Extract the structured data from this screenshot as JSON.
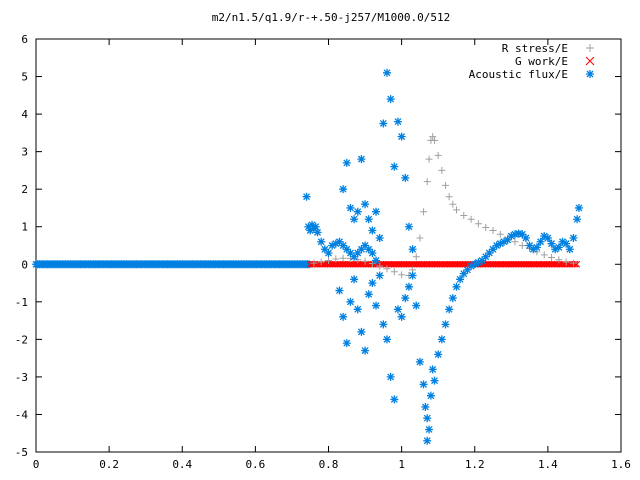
{
  "chart_data": {
    "type": "scatter",
    "title": "m2/n1.5/q1.9/r-+.50-j257/M1000.0/512",
    "xlabel": "",
    "ylabel": "",
    "xlim": [
      0,
      1.6
    ],
    "ylim": [
      -5,
      6
    ],
    "x_ticks": [
      "0",
      "0.2",
      "0.4",
      "0.6",
      "0.8",
      "1",
      "1.2",
      "1.4",
      "1.6"
    ],
    "y_ticks": [
      "6",
      "5",
      "4",
      "3",
      "2",
      "1",
      "0",
      "-1",
      "-2",
      "-3",
      "-4",
      "-5"
    ],
    "grid": false,
    "legend_position": "top-right",
    "series": [
      {
        "name": "R stress/E",
        "marker": "plus",
        "color": "#a0a0a0",
        "points": [
          [
            0.76,
            0.03
          ],
          [
            0.78,
            0.06
          ],
          [
            0.8,
            0.1
          ],
          [
            0.82,
            0.14
          ],
          [
            0.84,
            0.16
          ],
          [
            0.86,
            0.15
          ],
          [
            0.88,
            0.12
          ],
          [
            0.9,
            0.08
          ],
          [
            0.92,
            0.02
          ],
          [
            0.94,
            -0.05
          ],
          [
            0.96,
            -0.12
          ],
          [
            0.98,
            -0.2
          ],
          [
            1.0,
            -0.28
          ],
          [
            1.02,
            -0.3
          ],
          [
            1.03,
            -0.15
          ],
          [
            1.04,
            0.2
          ],
          [
            1.05,
            0.7
          ],
          [
            1.06,
            1.4
          ],
          [
            1.07,
            2.2
          ],
          [
            1.075,
            2.8
          ],
          [
            1.08,
            3.3
          ],
          [
            1.085,
            3.4
          ],
          [
            1.09,
            3.3
          ],
          [
            1.1,
            2.9
          ],
          [
            1.11,
            2.5
          ],
          [
            1.12,
            2.1
          ],
          [
            1.13,
            1.8
          ],
          [
            1.14,
            1.6
          ],
          [
            1.15,
            1.45
          ],
          [
            1.17,
            1.3
          ],
          [
            1.19,
            1.2
          ],
          [
            1.21,
            1.08
          ],
          [
            1.23,
            0.98
          ],
          [
            1.25,
            0.9
          ],
          [
            1.27,
            0.8
          ],
          [
            1.29,
            0.7
          ],
          [
            1.31,
            0.6
          ],
          [
            1.33,
            0.5
          ],
          [
            1.35,
            0.42
          ],
          [
            1.37,
            0.33
          ],
          [
            1.39,
            0.25
          ],
          [
            1.41,
            0.18
          ],
          [
            1.43,
            0.12
          ],
          [
            1.45,
            0.06
          ],
          [
            1.47,
            0.03
          ]
        ]
      },
      {
        "name": "G work/E",
        "marker": "cross",
        "color": "#ff0000",
        "range": [
          0.75,
          1.48
        ],
        "value": 0
      },
      {
        "name": "Acoustic flux/E",
        "marker": "star",
        "color": "#0080e0",
        "flat_range": [
          0,
          0.75
        ],
        "points": [
          [
            0.74,
            1.8
          ],
          [
            0.745,
            1.0
          ],
          [
            0.75,
            0.9
          ],
          [
            0.755,
            1.05
          ],
          [
            0.76,
            0.95
          ],
          [
            0.765,
            1.0
          ],
          [
            0.77,
            0.85
          ],
          [
            0.78,
            0.6
          ],
          [
            0.79,
            0.4
          ],
          [
            0.8,
            0.3
          ],
          [
            0.81,
            0.5
          ],
          [
            0.82,
            0.55
          ],
          [
            0.83,
            0.6
          ],
          [
            0.84,
            0.5
          ],
          [
            0.85,
            0.4
          ],
          [
            0.86,
            0.3
          ],
          [
            0.87,
            0.2
          ],
          [
            0.88,
            0.3
          ],
          [
            0.89,
            0.4
          ],
          [
            0.9,
            0.5
          ],
          [
            0.91,
            0.4
          ],
          [
            0.92,
            0.3
          ],
          [
            0.93,
            0.1
          ],
          [
            0.83,
            -0.7
          ],
          [
            0.84,
            -1.4
          ],
          [
            0.85,
            -2.1
          ],
          [
            0.86,
            -1.0
          ],
          [
            0.87,
            -0.4
          ],
          [
            0.88,
            -1.2
          ],
          [
            0.89,
            -1.8
          ],
          [
            0.9,
            -2.3
          ],
          [
            0.91,
            -0.8
          ],
          [
            0.92,
            -0.5
          ],
          [
            0.93,
            -1.1
          ],
          [
            0.94,
            -0.3
          ],
          [
            0.95,
            -1.6
          ],
          [
            0.96,
            -2.0
          ],
          [
            0.97,
            -3.0
          ],
          [
            0.98,
            -3.6
          ],
          [
            0.99,
            -1.2
          ],
          [
            1.0,
            -1.4
          ],
          [
            1.01,
            -0.9
          ],
          [
            1.02,
            -0.6
          ],
          [
            1.03,
            -0.3
          ],
          [
            1.04,
            -1.1
          ],
          [
            1.05,
            -2.6
          ],
          [
            1.06,
            -3.2
          ],
          [
            1.065,
            -3.8
          ],
          [
            1.07,
            -4.1
          ],
          [
            1.07,
            -4.7
          ],
          [
            1.075,
            -4.4
          ],
          [
            1.08,
            -3.5
          ],
          [
            1.085,
            -2.8
          ],
          [
            0.84,
            2.0
          ],
          [
            0.85,
            2.7
          ],
          [
            0.86,
            1.5
          ],
          [
            0.87,
            1.2
          ],
          [
            0.88,
            1.4
          ],
          [
            0.89,
            2.8
          ],
          [
            0.9,
            1.6
          ],
          [
            0.91,
            1.2
          ],
          [
            0.92,
            0.9
          ],
          [
            0.93,
            1.4
          ],
          [
            0.94,
            0.7
          ],
          [
            0.95,
            3.75
          ],
          [
            0.96,
            5.1
          ],
          [
            0.97,
            4.4
          ],
          [
            0.98,
            2.6
          ],
          [
            0.99,
            3.8
          ],
          [
            1.0,
            3.4
          ],
          [
            1.01,
            2.3
          ],
          [
            1.02,
            1.0
          ],
          [
            1.03,
            0.4
          ],
          [
            1.09,
            -3.1
          ],
          [
            1.1,
            -2.4
          ],
          [
            1.11,
            -2.0
          ],
          [
            1.12,
            -1.6
          ],
          [
            1.13,
            -1.2
          ],
          [
            1.14,
            -0.9
          ],
          [
            1.15,
            -0.6
          ],
          [
            1.16,
            -0.4
          ],
          [
            1.17,
            -0.25
          ],
          [
            1.18,
            -0.15
          ],
          [
            1.19,
            -0.05
          ],
          [
            1.2,
            0.0
          ],
          [
            1.21,
            0.05
          ],
          [
            1.22,
            0.1
          ],
          [
            1.23,
            0.2
          ],
          [
            1.24,
            0.3
          ],
          [
            1.25,
            0.4
          ],
          [
            1.26,
            0.5
          ],
          [
            1.27,
            0.55
          ],
          [
            1.28,
            0.6
          ],
          [
            1.29,
            0.65
          ],
          [
            1.3,
            0.75
          ],
          [
            1.31,
            0.8
          ],
          [
            1.32,
            0.82
          ],
          [
            1.33,
            0.8
          ],
          [
            1.34,
            0.7
          ],
          [
            1.35,
            0.5
          ],
          [
            1.36,
            0.4
          ],
          [
            1.37,
            0.45
          ],
          [
            1.38,
            0.6
          ],
          [
            1.39,
            0.75
          ],
          [
            1.4,
            0.7
          ],
          [
            1.41,
            0.55
          ],
          [
            1.42,
            0.4
          ],
          [
            1.43,
            0.45
          ],
          [
            1.44,
            0.6
          ],
          [
            1.45,
            0.55
          ],
          [
            1.46,
            0.4
          ],
          [
            1.47,
            0.7
          ],
          [
            1.48,
            1.2
          ],
          [
            1.485,
            1.5
          ]
        ]
      }
    ]
  }
}
